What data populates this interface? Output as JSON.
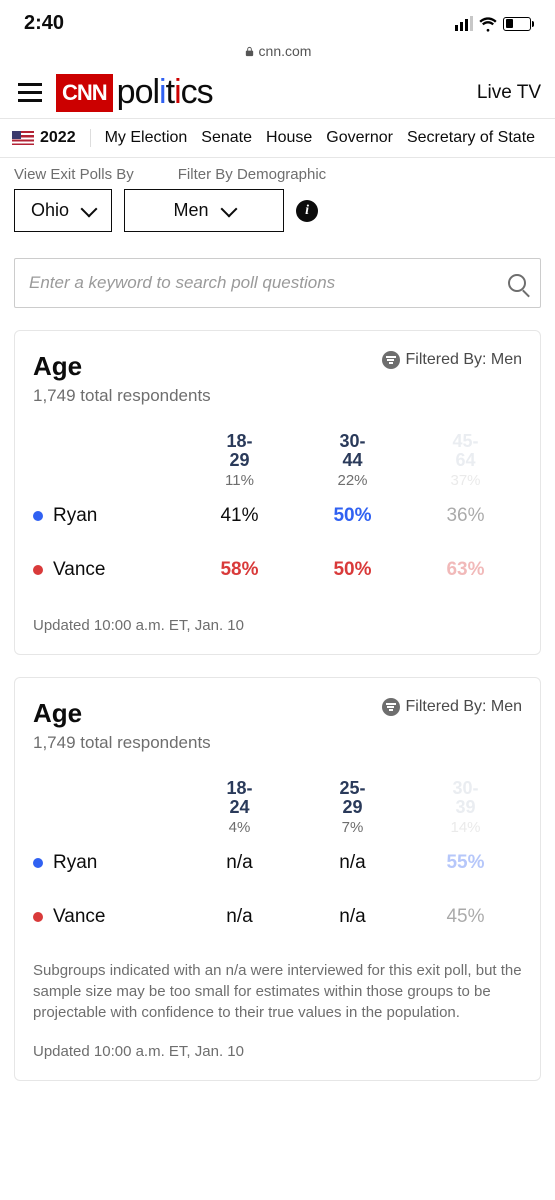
{
  "status": {
    "time": "2:40"
  },
  "url": "cnn.com",
  "logo": {
    "cnn": "CNN",
    "section": "politics"
  },
  "liveTv": "Live TV",
  "year": "2022",
  "subnav": [
    "My Election",
    "Senate",
    "House",
    "Governor",
    "Secretary of State"
  ],
  "filters": {
    "label1": "View Exit Polls By",
    "label2": "Filter By Demographic",
    "state": "Ohio",
    "demo": "Men"
  },
  "search": {
    "placeholder": "Enter a keyword to search poll questions"
  },
  "colors": {
    "dem": "#3061f2",
    "rep": "#d93a3a",
    "text": "#0c0c0c",
    "muted": "#6e6e6e",
    "head": "#2a3a5a"
  },
  "cards": [
    {
      "title": "Age",
      "respondents": "1,749 total respondents",
      "filteredBy": "Filtered By: Men",
      "headers": [
        {
          "range": [
            "18-",
            "29"
          ],
          "pct": "11%",
          "fade": false
        },
        {
          "range": [
            "30-",
            "44"
          ],
          "pct": "22%",
          "fade": false
        },
        {
          "range": [
            "45-",
            "64"
          ],
          "pct": "37%",
          "fade": true
        }
      ],
      "rows": [
        {
          "name": "Ryan",
          "party": "dem",
          "vals": [
            {
              "t": "41%",
              "bold": false,
              "color": "#0c0c0c",
              "fade": false
            },
            {
              "t": "50%",
              "bold": true,
              "color": "#3061f2",
              "fade": false
            },
            {
              "t": "36%",
              "bold": false,
              "color": "#0c0c0c",
              "fade": true
            }
          ]
        },
        {
          "name": "Vance",
          "party": "rep",
          "vals": [
            {
              "t": "58%",
              "bold": true,
              "color": "#d93a3a",
              "fade": false
            },
            {
              "t": "50%",
              "bold": true,
              "color": "#d93a3a",
              "fade": false
            },
            {
              "t": "63%",
              "bold": true,
              "color": "#d93a3a",
              "fade": true
            }
          ]
        }
      ],
      "footnote": null,
      "updated": "Updated 10:00 a.m. ET, Jan. 10"
    },
    {
      "title": "Age",
      "respondents": "1,749 total respondents",
      "filteredBy": "Filtered By: Men",
      "headers": [
        {
          "range": [
            "18-",
            "24"
          ],
          "pct": "4%",
          "fade": false
        },
        {
          "range": [
            "25-",
            "29"
          ],
          "pct": "7%",
          "fade": false
        },
        {
          "range": [
            "30-",
            "39"
          ],
          "pct": "14%",
          "fade": true
        }
      ],
      "rows": [
        {
          "name": "Ryan",
          "party": "dem",
          "vals": [
            {
              "t": "n/a",
              "bold": false,
              "color": "#0c0c0c",
              "fade": false
            },
            {
              "t": "n/a",
              "bold": false,
              "color": "#0c0c0c",
              "fade": false
            },
            {
              "t": "55%",
              "bold": true,
              "color": "#3061f2",
              "fade": true
            }
          ]
        },
        {
          "name": "Vance",
          "party": "rep",
          "vals": [
            {
              "t": "n/a",
              "bold": false,
              "color": "#0c0c0c",
              "fade": false
            },
            {
              "t": "n/a",
              "bold": false,
              "color": "#0c0c0c",
              "fade": false
            },
            {
              "t": "45%",
              "bold": false,
              "color": "#0c0c0c",
              "fade": true
            }
          ]
        }
      ],
      "footnote": "Subgroups indicated with an n/a were interviewed for this exit poll, but the sample size may be too small for estimates within those groups to be projectable with confidence to their true values in the population.",
      "updated": "Updated 10:00 a.m. ET, Jan. 10"
    }
  ]
}
